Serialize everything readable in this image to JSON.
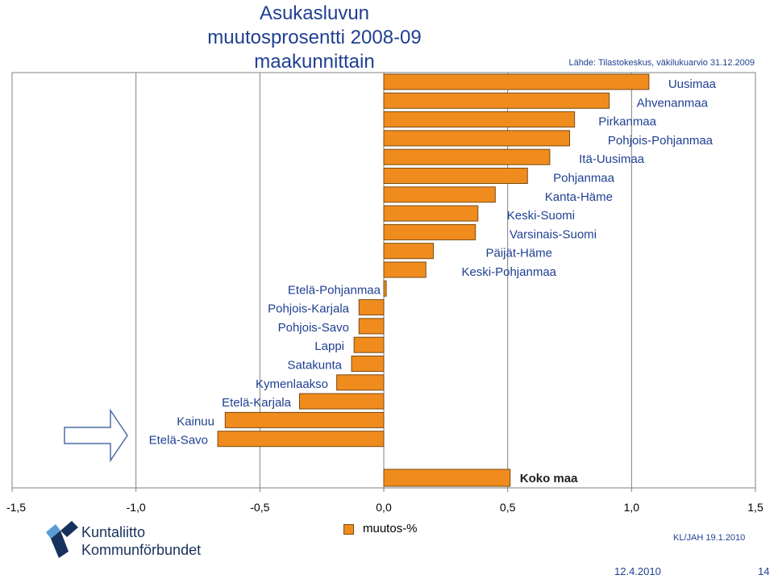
{
  "title_line1": "Asukasluvun muutosprosentti 2008-09",
  "title_line2": "maakunnittain",
  "source": "Lähde: Tilastokeskus, väkilukuarvio 31.12.2009",
  "legend_label": "muutos-%",
  "logo": {
    "line1": "Kuntaliitto",
    "line2": "Kommunförbundet"
  },
  "footer": {
    "code": "KL/JAH 19.1.2010",
    "date": "12.4.2010",
    "page": "14"
  },
  "colors": {
    "bar": "#f08c1e",
    "bar_stroke": "#7a4a10",
    "accent": "#1f3f91"
  },
  "chart_data": {
    "type": "bar",
    "orientation": "horizontal",
    "xlim": [
      -1.5,
      1.5
    ],
    "x_ticks": [
      -1.5,
      -1.0,
      -0.5,
      0.0,
      0.5,
      1.0,
      1.5
    ],
    "x_tick_labels": [
      "-1,5",
      "-1,0",
      "-0,5",
      "0,0",
      "0,5",
      "1,0",
      "1,5"
    ],
    "grid": "vertical",
    "legend": "bottom-center",
    "categories": [
      "Uusimaa",
      "Ahvenanmaa",
      "Pirkanmaa",
      "Pohjois-Pohjanmaa",
      "Itä-Uusimaa",
      "Pohjanmaa",
      "Kanta-Häme",
      "Keski-Suomi",
      "Varsinais-Suomi",
      "Päijät-Häme",
      "Keski-Pohjanmaa",
      "Etelä-Pohjanmaa",
      "Pohjois-Karjala",
      "Pohjois-Savo",
      "Lappi",
      "Satakunta",
      "Kymenlaakso",
      "Etelä-Karjala",
      "Kainuu",
      "Etelä-Savo",
      "Koko maa"
    ],
    "values": [
      1.07,
      0.91,
      0.77,
      0.75,
      0.67,
      0.58,
      0.45,
      0.38,
      0.37,
      0.2,
      0.17,
      0.01,
      -0.1,
      -0.1,
      -0.12,
      -0.13,
      -0.19,
      -0.34,
      -0.64,
      -0.67,
      0.51
    ]
  }
}
